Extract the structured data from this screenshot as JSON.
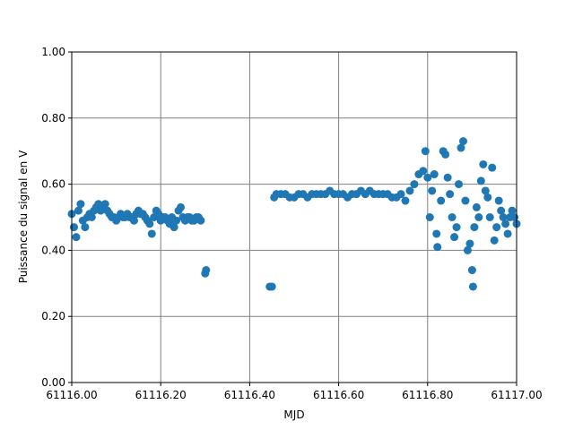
{
  "chart_data": {
    "type": "scatter",
    "xlabel": "MJD",
    "ylabel": "Puissance du signal en V",
    "color": "#1f77b4",
    "grid": true,
    "xlim": [
      61116.0,
      61117.0
    ],
    "xticks": [
      {
        "value": 61116.0,
        "label": "61116.00"
      },
      {
        "value": 61116.2,
        "label": "61116.20"
      },
      {
        "value": 61116.4,
        "label": "61116.40"
      },
      {
        "value": 61116.6,
        "label": "61116.60"
      },
      {
        "value": 61116.8,
        "label": "61116.80"
      },
      {
        "value": 61117.0,
        "label": "61117.00"
      }
    ],
    "ylim": [
      0,
      1
    ],
    "yticks": [
      {
        "value": 0,
        "label": "0.00"
      },
      {
        "value": 0.2,
        "label": "0.20"
      },
      {
        "value": 0.4,
        "label": "0.40"
      },
      {
        "value": 0.6,
        "label": "0.60"
      },
      {
        "value": 0.8,
        "label": "0.80"
      },
      {
        "value": 1,
        "label": "1.00"
      }
    ],
    "x": [
      61116.0,
      61116.005,
      61116.01,
      61116.015,
      61116.02,
      61116.025,
      61116.03,
      61116.035,
      61116.04,
      61116.045,
      61116.05,
      61116.055,
      61116.06,
      61116.065,
      61116.07,
      61116.075,
      61116.08,
      61116.085,
      61116.09,
      61116.095,
      61116.1,
      61116.105,
      61116.11,
      61116.115,
      61116.12,
      61116.125,
      61116.13,
      61116.135,
      61116.14,
      61116.145,
      61116.15,
      61116.155,
      61116.16,
      61116.165,
      61116.17,
      61116.175,
      61116.18,
      61116.185,
      61116.19,
      61116.195,
      61116.2,
      61116.205,
      61116.21,
      61116.215,
      61116.22,
      61116.225,
      61116.23,
      61116.235,
      61116.24,
      61116.245,
      61116.25,
      61116.255,
      61116.26,
      61116.265,
      61116.27,
      61116.275,
      61116.28,
      61116.285,
      61116.29,
      61116.3,
      61116.302,
      61116.445,
      61116.45,
      61116.455,
      61116.46,
      61116.47,
      61116.48,
      61116.49,
      61116.5,
      61116.51,
      61116.52,
      61116.53,
      61116.54,
      61116.55,
      61116.56,
      61116.57,
      61116.58,
      61116.59,
      61116.6,
      61116.61,
      61116.62,
      61116.63,
      61116.64,
      61116.65,
      61116.66,
      61116.67,
      61116.68,
      61116.69,
      61116.7,
      61116.71,
      61116.72,
      61116.73,
      61116.74,
      61116.75,
      61116.76,
      61116.77,
      61116.78,
      61116.79,
      61116.795,
      61116.8,
      61116.805,
      61116.81,
      61116.815,
      61116.82,
      61116.822,
      61116.83,
      61116.835,
      61116.84,
      61116.845,
      61116.85,
      61116.855,
      61116.86,
      61116.865,
      61116.87,
      61116.875,
      61116.88,
      61116.885,
      61116.89,
      61116.895,
      61116.9,
      61116.902,
      61116.905,
      61116.91,
      61116.915,
      61116.92,
      61116.925,
      61116.93,
      61116.935,
      61116.94,
      61116.945,
      61116.95,
      61116.955,
      61116.96,
      61116.965,
      61116.97,
      61116.975,
      61116.98,
      61116.985,
      61116.99,
      61116.995,
      61117.0
    ],
    "values": [
      0.51,
      0.47,
      0.44,
      0.52,
      0.54,
      0.49,
      0.47,
      0.5,
      0.51,
      0.5,
      0.52,
      0.53,
      0.54,
      0.52,
      0.53,
      0.54,
      0.52,
      0.51,
      0.5,
      0.5,
      0.49,
      0.5,
      0.51,
      0.5,
      0.5,
      0.51,
      0.5,
      0.5,
      0.49,
      0.51,
      0.52,
      0.51,
      0.51,
      0.5,
      0.49,
      0.48,
      0.45,
      0.5,
      0.52,
      0.51,
      0.49,
      0.5,
      0.5,
      0.49,
      0.48,
      0.5,
      0.47,
      0.49,
      0.52,
      0.53,
      0.5,
      0.49,
      0.5,
      0.5,
      0.49,
      0.49,
      0.5,
      0.5,
      0.49,
      0.33,
      0.34,
      0.29,
      0.29,
      0.56,
      0.57,
      0.57,
      0.57,
      0.56,
      0.56,
      0.57,
      0.57,
      0.56,
      0.57,
      0.57,
      0.57,
      0.57,
      0.58,
      0.57,
      0.57,
      0.57,
      0.56,
      0.57,
      0.57,
      0.58,
      0.57,
      0.58,
      0.57,
      0.57,
      0.57,
      0.57,
      0.56,
      0.56,
      0.57,
      0.55,
      0.58,
      0.6,
      0.63,
      0.64,
      0.7,
      0.62,
      0.5,
      0.58,
      0.63,
      0.45,
      0.41,
      0.55,
      0.7,
      0.69,
      0.62,
      0.57,
      0.5,
      0.44,
      0.47,
      0.6,
      0.71,
      0.73,
      0.55,
      0.4,
      0.42,
      0.34,
      0.29,
      0.47,
      0.53,
      0.5,
      0.61,
      0.66,
      0.58,
      0.56,
      0.5,
      0.65,
      0.43,
      0.47,
      0.55,
      0.52,
      0.5,
      0.48,
      0.45,
      0.5,
      0.52,
      0.5,
      0.48
    ]
  }
}
